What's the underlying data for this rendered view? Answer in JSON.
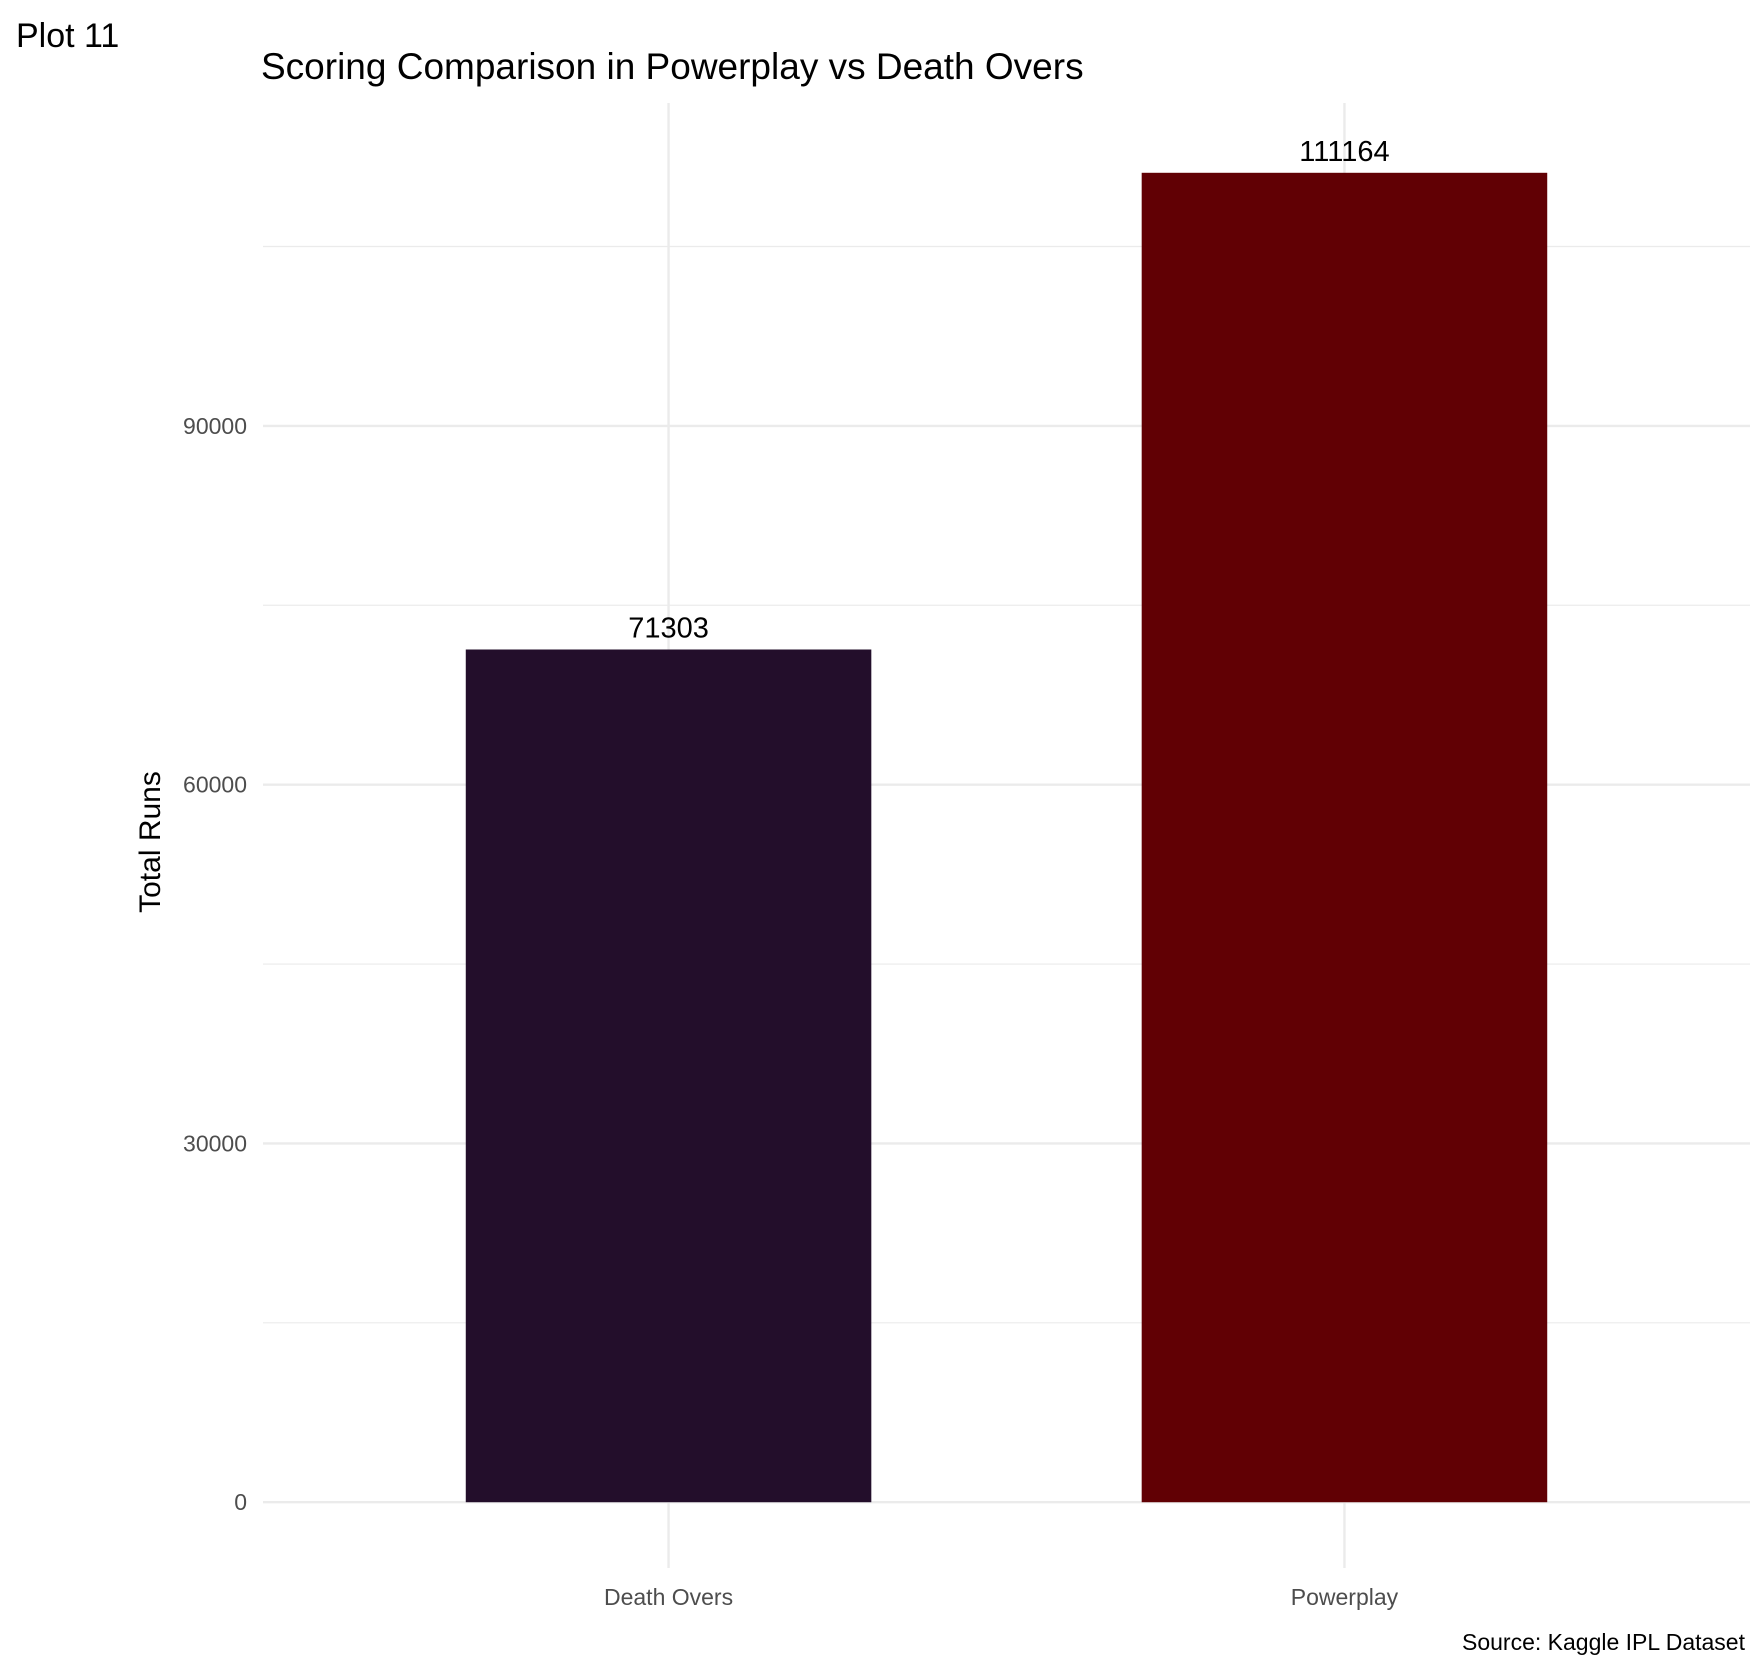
{
  "plot_tag": "Plot 11",
  "caption": "Source: Kaggle IPL Dataset",
  "chart_data": {
    "type": "bar",
    "title": "Scoring Comparison in Powerplay vs Death Overs",
    "xlabel": "",
    "ylabel": "Total Runs",
    "categories": [
      "Death Overs",
      "Powerplay"
    ],
    "values": [
      71303,
      111164
    ],
    "data_labels": [
      "71303",
      "111164"
    ],
    "bar_colors": [
      "#230e2b",
      "#610004"
    ],
    "yticks": [
      0,
      30000,
      60000,
      90000
    ],
    "ytick_labels": [
      "0",
      "30000",
      "60000",
      "90000"
    ],
    "ylim": [
      -5500,
      117000
    ],
    "grid": true,
    "legend": "none"
  }
}
